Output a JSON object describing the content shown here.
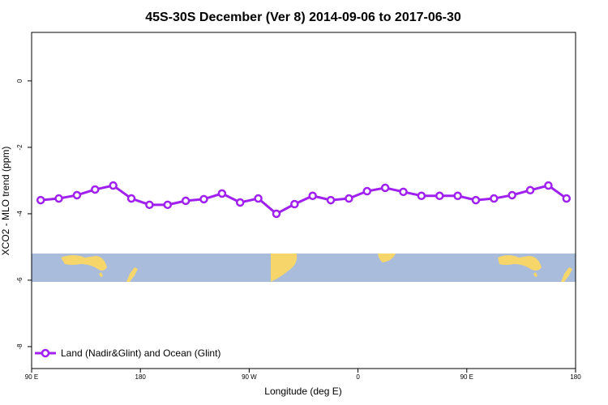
{
  "chart_data": {
    "type": "line",
    "title": "45S-30S December (Ver 8)   2014-09-06 to 2017-06-30",
    "x_label": "Longitude (deg E)",
    "y_label": "XCO2 - MLO trend (ppm)",
    "x": [
      97.5,
      112.5,
      127.5,
      142.5,
      157.5,
      172.5,
      187.5,
      202.5,
      217.5,
      232.5,
      247.5,
      262.5,
      277.5,
      292.5,
      307.5,
      322.5,
      337.5,
      352.5,
      367.5,
      382.5,
      397.5,
      412.5,
      427.5,
      442.5,
      457.5,
      472.5,
      487.5,
      502.5,
      517.5,
      532.5
    ],
    "series": [
      {
        "name": "Land (Nadir&Glint) and Ocean (Glint)",
        "color": "#a020f0",
        "values": [
          -3.59,
          -3.54,
          -3.44,
          -3.27,
          -3.15,
          -3.54,
          -3.73,
          -3.73,
          -3.61,
          -3.56,
          -3.39,
          -3.66,
          -3.54,
          -4.0,
          -3.71,
          -3.46,
          -3.59,
          -3.54,
          -3.32,
          -3.22,
          -3.34,
          -3.46,
          -3.46,
          -3.46,
          -3.59,
          -3.54,
          -3.44,
          -3.29,
          -3.15,
          -3.54
        ]
      }
    ],
    "xlim": [
      90,
      540
    ],
    "xticks": [
      {
        "value": 90,
        "label": "90 E"
      },
      {
        "value": 180,
        "label": "180"
      },
      {
        "value": 270,
        "label": "90 W"
      },
      {
        "value": 360,
        "label": "0"
      },
      {
        "value": 450,
        "label": "90 E"
      },
      {
        "value": 540,
        "label": "180"
      }
    ],
    "ylim": [
      -8.66,
      1.46
    ],
    "yticks": [
      0,
      -2,
      -4,
      -6,
      -8
    ],
    "legend": "bottom-left"
  }
}
